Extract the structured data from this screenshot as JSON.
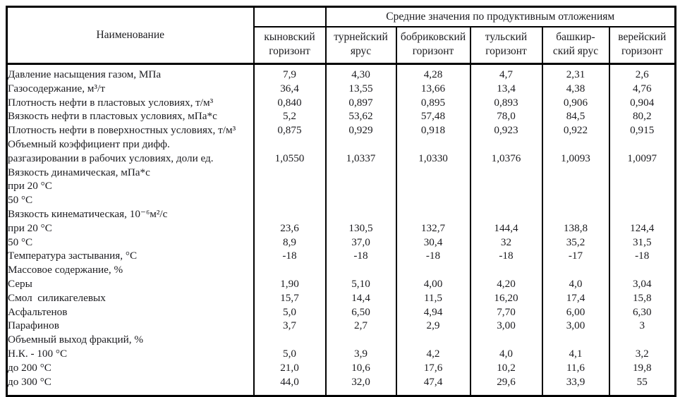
{
  "table": {
    "name_header": "Наименование",
    "group_header": "Средние значения по продуктивным отложениям",
    "text_color": "#1b1b1f",
    "border_color": "#000000",
    "columns": [
      {
        "id": "kynovsky",
        "line1": "кыновский",
        "line2": "горизонт"
      },
      {
        "id": "turneysky",
        "line1": "турнейский",
        "line2": "ярус"
      },
      {
        "id": "bobrikovsky",
        "line1": "бобриковский",
        "line2": "горизонт"
      },
      {
        "id": "tulsky",
        "line1": "тульский",
        "line2": "горизонт"
      },
      {
        "id": "bashkirsky",
        "line1": "башкир-",
        "line2": "ский ярус"
      },
      {
        "id": "vereysky",
        "line1": "верейский",
        "line2": "горизонт"
      }
    ],
    "rows": [
      {
        "label": "Давление насыщения газом, МПа",
        "indent": 0,
        "values": [
          "7,9",
          "4,30",
          "4,28",
          "4,7",
          "2,31",
          "2,6"
        ]
      },
      {
        "label": "Газосодержание, м³/т",
        "indent": 0,
        "values": [
          "36,4",
          "13,55",
          "13,66",
          "13,4",
          "4,38",
          "4,76"
        ]
      },
      {
        "label": "Плотность нефти в пластовых условиях, т/м³",
        "indent": 0,
        "values": [
          "0,840",
          "0,897",
          "0,895",
          "0,893",
          "0,906",
          "0,904"
        ]
      },
      {
        "label": "Вязкость нефти в пластовых условиях, мПа*с",
        "indent": 0,
        "values": [
          "5,2",
          "53,62",
          "57,48",
          "78,0",
          "84,5",
          "80,2"
        ]
      },
      {
        "label": "Плотность нефти в поверхностных условиях, т/м³",
        "indent": 0,
        "values": [
          "0,875",
          "0,929",
          "0,918",
          "0,923",
          "0,922",
          "0,915"
        ]
      },
      {
        "label": "Объемный коэффициент при дифф.",
        "indent": 0,
        "values": [
          "",
          "",
          "",
          "",
          "",
          ""
        ]
      },
      {
        "label": "разгазировании в рабочих условиях, доли ед.",
        "indent": 0,
        "values": [
          "1,0550",
          "1,0337",
          "1,0330",
          "1,0376",
          "1,0093",
          "1,0097"
        ]
      },
      {
        "label": "Вязкость динамическая, мПа*с",
        "indent": 0,
        "values": [
          "",
          "",
          "",
          "",
          "",
          ""
        ]
      },
      {
        "label": "при 20 °С",
        "indent": 0,
        "values": [
          "",
          "",
          "",
          "",
          "",
          ""
        ]
      },
      {
        "label": "50 °С",
        "indent": 1,
        "values": [
          "",
          "",
          "",
          "",
          "",
          ""
        ]
      },
      {
        "label": "Вязкость кинематическая, 10⁻⁶м²/с",
        "indent": 0,
        "values": [
          "",
          "",
          "",
          "",
          "",
          ""
        ]
      },
      {
        "label": "при 20 °С",
        "indent": 0,
        "values": [
          "23,6",
          "130,5",
          "132,7",
          "144,4",
          "138,8",
          "124,4"
        ]
      },
      {
        "label": "50 °С",
        "indent": 1,
        "values": [
          "8,9",
          "37,0",
          "30,4",
          "32",
          "35,2",
          "31,5"
        ]
      },
      {
        "label": "Температура застывания, °С",
        "indent": 0,
        "values": [
          "-18",
          "-18",
          "-18",
          "-18",
          "-17",
          "-18"
        ]
      },
      {
        "label": "Массовое содержание, %",
        "indent": 0,
        "values": [
          "",
          "",
          "",
          "",
          "",
          ""
        ]
      },
      {
        "label": "Серы",
        "indent": 2,
        "values": [
          "1,90",
          "5,10",
          "4,00",
          "4,20",
          "4,0",
          "3,04"
        ]
      },
      {
        "label": "Смол  силикагелевых",
        "indent": 2,
        "values": [
          "15,7",
          "14,4",
          "11,5",
          "16,20",
          "17,4",
          "15,8"
        ]
      },
      {
        "label": "Асфальтенов",
        "indent": 2,
        "values": [
          "5,0",
          "6,50",
          "4,94",
          "7,70",
          "6,00",
          "6,30"
        ]
      },
      {
        "label": "Парафинов",
        "indent": 2,
        "values": [
          "3,7",
          "2,7",
          "2,9",
          "3,00",
          "3,00",
          "3"
        ]
      },
      {
        "label": "Объемный выход фракций, %",
        "indent": 0,
        "values": [
          "",
          "",
          "",
          "",
          "",
          ""
        ]
      },
      {
        "label": "Н.К. - 100 °С",
        "indent": 2,
        "values": [
          "5,0",
          "3,9",
          "4,2",
          "4,0",
          "4,1",
          "3,2"
        ]
      },
      {
        "label": "до 200 °С",
        "indent": 2,
        "values": [
          "21,0",
          "10,6",
          "17,6",
          "10,2",
          "11,6",
          "19,8"
        ]
      },
      {
        "label": "до 300 °С",
        "indent": 2,
        "values": [
          "44,0",
          "32,0",
          "47,4",
          "29,6",
          "33,9",
          "55"
        ]
      }
    ]
  }
}
